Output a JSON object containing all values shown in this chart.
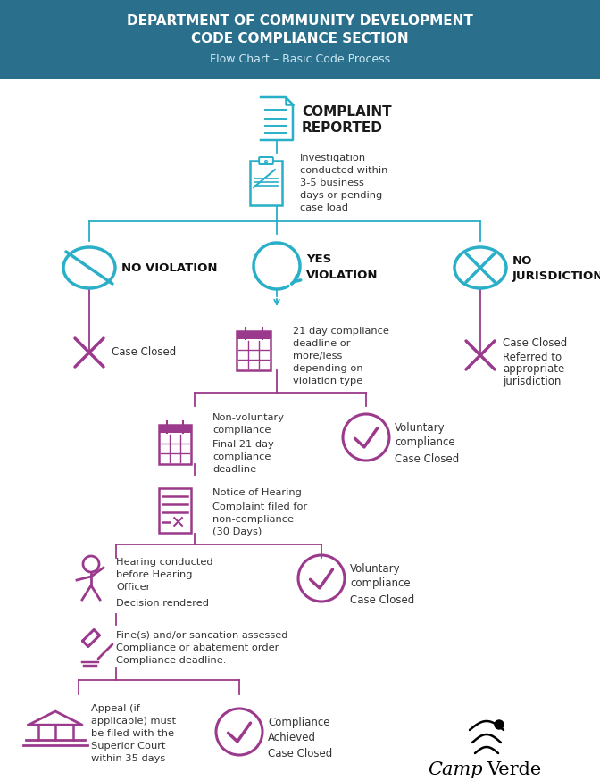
{
  "title_line1": "DEPARTMENT OF COMMUNITY DEVELOPMENT",
  "title_line2": "CODE COMPLIANCE SECTION",
  "title_line3": "Flow Chart – Basic Code Process",
  "header_bg": "#2a6f8c",
  "cyan_color": "#29afc8",
  "purple_color": "#9b3a8c",
  "dark_text": "#2a2a2a",
  "bg_color": "#ffffff",
  "fig_w": 6.72,
  "fig_h": 8.74,
  "dpi": 100
}
